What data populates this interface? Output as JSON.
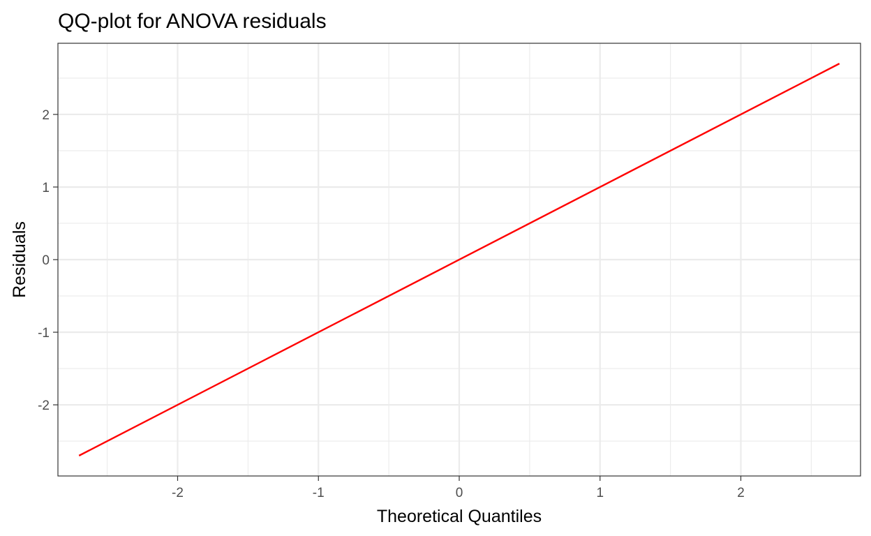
{
  "chart_data": {
    "type": "line",
    "title": "QQ-plot for ANOVA residuals",
    "xlabel": "Theoretical Quantiles",
    "ylabel": "Residuals",
    "xlim": [
      -2.85,
      2.85
    ],
    "ylim": [
      -2.98,
      2.98
    ],
    "x_ticks": [
      -2,
      -1,
      0,
      1,
      2
    ],
    "y_ticks": [
      -2,
      -1,
      0,
      1,
      2
    ],
    "x_tick_labels": [
      "-2",
      "-1",
      "0",
      "1",
      "2"
    ],
    "y_tick_labels": [
      "-2",
      "-1",
      "0",
      "1",
      "2"
    ],
    "grid": true,
    "series": [
      {
        "color": "#ff0000",
        "points": [
          [
            -2.7,
            -2.7
          ],
          [
            2.7,
            2.7
          ]
        ]
      }
    ]
  }
}
